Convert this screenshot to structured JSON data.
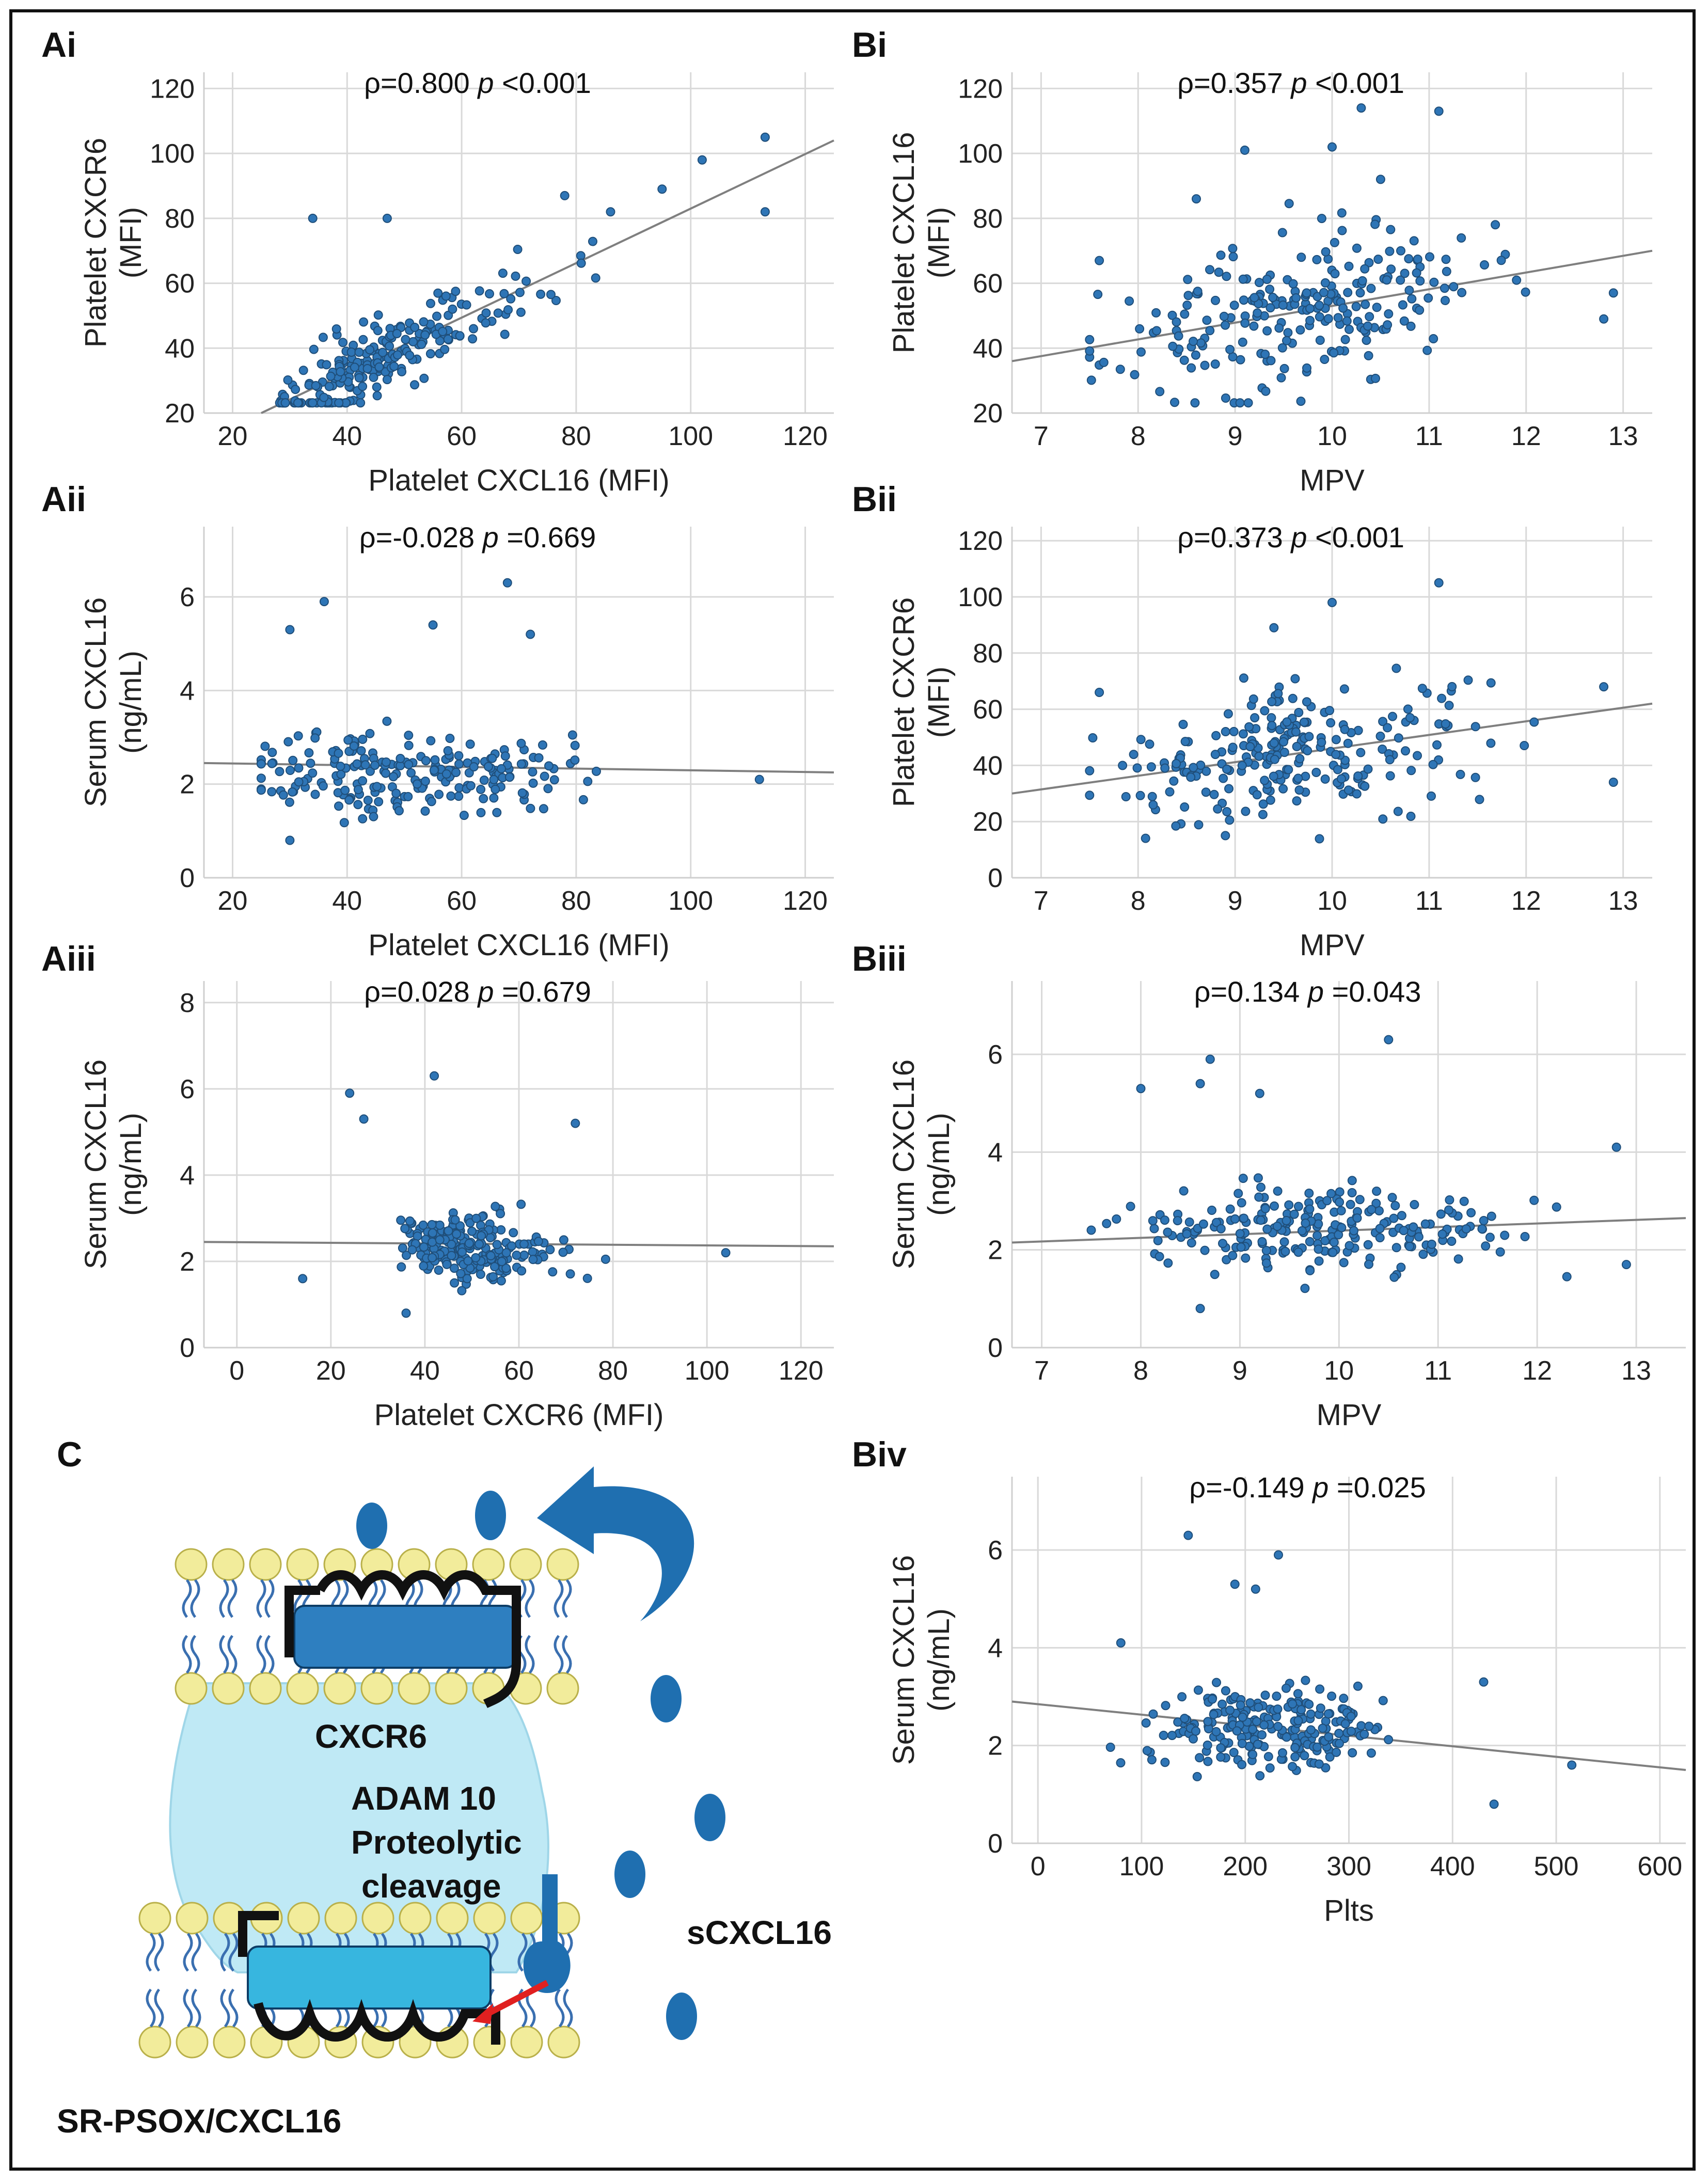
{
  "figure": {
    "panel_c": {
      "label": "C",
      "labels": {
        "receptor": "CXCR6",
        "enzyme_line1": "ADAM  10",
        "enzyme_line2": "Proteolytic",
        "enzyme_line3": "cleavage",
        "soluble": "sCXCL16",
        "membrane": "SR-PSOX/CXCL16"
      },
      "colors": {
        "cell": "#bfe9f5",
        "helix": "#2e9fd0",
        "molecule": "#1f6fb0",
        "lipid_head": "#f2ec9b",
        "cleavage_arrow": "#e02020"
      }
    }
  },
  "chart_data": [
    {
      "id": "Ai",
      "label": "Ai",
      "type": "scatter",
      "xlabel": "Platelet CXCL16 (MFI)",
      "ylabel_lines": [
        "Platelet CXCR6",
        "(MFI)"
      ],
      "xlim": [
        15,
        125
      ],
      "ylim": [
        20,
        125
      ],
      "xticks": [
        20,
        40,
        60,
        80,
        100,
        120
      ],
      "yticks": [
        20,
        40,
        60,
        80,
        100,
        120
      ],
      "rho": "ρ=0.800",
      "p_sym": "p",
      "p_val": "<0.001",
      "fit": {
        "x0": 25,
        "y0": 20,
        "x1": 125,
        "y1": 104
      },
      "n_points": 230,
      "seed": 11,
      "extra_points": [
        [
          34,
          80
        ],
        [
          47,
          80
        ],
        [
          113,
          105
        ],
        [
          113,
          82
        ],
        [
          102,
          98
        ],
        [
          95,
          89
        ],
        [
          86,
          82
        ],
        [
          78,
          87
        ]
      ]
    },
    {
      "id": "Bi",
      "label": "Bi",
      "type": "scatter",
      "xlabel": "MPV",
      "ylabel_lines": [
        "Platelet CXCL16",
        "(MFI)"
      ],
      "xlim": [
        6.7,
        13.3
      ],
      "ylim": [
        20,
        125
      ],
      "xticks": [
        7,
        8,
        9,
        10,
        11,
        12,
        13
      ],
      "yticks": [
        20,
        40,
        60,
        80,
        100,
        120
      ],
      "rho": "ρ=0.357",
      "p_sym": "p",
      "p_val": "<0.001",
      "fit": {
        "x0": 6.7,
        "y0": 36,
        "x1": 13.3,
        "y1": 70
      },
      "n_points": 240,
      "seed": 23,
      "extra_points": [
        [
          10.3,
          114
        ],
        [
          11.1,
          113
        ],
        [
          9.1,
          101
        ],
        [
          10,
          102
        ],
        [
          10.5,
          92
        ],
        [
          8.6,
          86
        ],
        [
          7.6,
          67
        ],
        [
          12.8,
          49
        ],
        [
          12.9,
          57
        ]
      ]
    },
    {
      "id": "Aii",
      "label": "Aii",
      "type": "scatter",
      "xlabel": "Platelet CXCL16 (MFI)",
      "ylabel_lines": [
        "Serum CXCL16",
        "(ng/mL)"
      ],
      "xlim": [
        15,
        125
      ],
      "ylim": [
        0,
        7.5
      ],
      "xticks": [
        20,
        40,
        60,
        80,
        100,
        120
      ],
      "yticks": [
        0,
        2,
        4,
        6
      ],
      "rho": "ρ=-0.028",
      "p_sym": "p",
      "p_val": "=0.669",
      "fit": {
        "x0": 15,
        "y0": 2.45,
        "x1": 125,
        "y1": 2.25
      },
      "n_points": 220,
      "seed": 37,
      "extra_points": [
        [
          36,
          5.9
        ],
        [
          68,
          6.3
        ],
        [
          55,
          5.4
        ],
        [
          30,
          5.3
        ],
        [
          72,
          5.2
        ],
        [
          112,
          2.1
        ],
        [
          30,
          0.8
        ]
      ]
    },
    {
      "id": "Bii",
      "label": "Bii",
      "type": "scatter",
      "xlabel": "MPV",
      "ylabel_lines": [
        "Platelet CXCR6",
        "(MFI)"
      ],
      "xlim": [
        6.7,
        13.3
      ],
      "ylim": [
        0,
        125
      ],
      "xticks": [
        7,
        8,
        9,
        10,
        11,
        12,
        13
      ],
      "yticks": [
        0,
        20,
        40,
        60,
        80,
        100,
        120
      ],
      "rho": "ρ=0.373",
      "p_sym": "p",
      "p_val": "<0.001",
      "fit": {
        "x0": 6.7,
        "y0": 30,
        "x1": 13.3,
        "y1": 62
      },
      "n_points": 240,
      "seed": 41,
      "extra_points": [
        [
          11.1,
          105
        ],
        [
          10,
          98
        ],
        [
          9.4,
          89
        ],
        [
          7.6,
          66
        ],
        [
          12.8,
          68
        ],
        [
          12.9,
          34
        ],
        [
          8.9,
          15
        ]
      ]
    },
    {
      "id": "Aiii",
      "label": "Aiii",
      "type": "scatter",
      "xlabel": "Platelet CXCR6 (MFI)",
      "ylabel_lines": [
        "Serum CXCL16",
        "(ng/mL)"
      ],
      "xlim": [
        -7,
        127
      ],
      "ylim": [
        0,
        8.5
      ],
      "xticks": [
        0,
        20,
        40,
        60,
        80,
        100,
        120
      ],
      "yticks": [
        0,
        2,
        4,
        6,
        8
      ],
      "rho": "ρ=0.028",
      "p_sym": "p",
      "p_val": "=0.679",
      "fit": {
        "x0": -7,
        "y0": 2.45,
        "x1": 127,
        "y1": 2.35
      },
      "n_points": 220,
      "seed": 53,
      "extra_points": [
        [
          24,
          5.9
        ],
        [
          42,
          6.3
        ],
        [
          27,
          5.3
        ],
        [
          72,
          5.2
        ],
        [
          104,
          2.2
        ],
        [
          14,
          1.6
        ],
        [
          36,
          0.8
        ]
      ]
    },
    {
      "id": "Biii",
      "label": "Biii",
      "type": "scatter",
      "xlabel": "MPV",
      "ylabel_lines": [
        "Serum CXCL16",
        "(ng/mL)"
      ],
      "xlim": [
        6.7,
        13.5
      ],
      "ylim": [
        0,
        7.5
      ],
      "xticks": [
        7,
        8,
        9,
        10,
        11,
        12,
        13
      ],
      "yticks": [
        0,
        2,
        4,
        6
      ],
      "rho": "ρ=0.134",
      "p_sym": "p",
      "p_val": "=0.043",
      "fit": {
        "x0": 6.7,
        "y0": 2.15,
        "x1": 13.5,
        "y1": 2.65
      },
      "n_points": 230,
      "seed": 67,
      "extra_points": [
        [
          10.5,
          6.3
        ],
        [
          8.7,
          5.9
        ],
        [
          8.6,
          5.4
        ],
        [
          8.0,
          5.3
        ],
        [
          9.2,
          5.2
        ],
        [
          12.8,
          4.1
        ],
        [
          12.9,
          1.7
        ],
        [
          8.6,
          0.8
        ]
      ]
    },
    {
      "id": "Biv",
      "label": "Biv",
      "type": "scatter",
      "xlabel": "Plts",
      "ylabel_lines": [
        "Serum CXCL16",
        "(ng/mL)"
      ],
      "xlim": [
        -25,
        625
      ],
      "ylim": [
        0,
        7.5
      ],
      "xticks": [
        0,
        100,
        200,
        300,
        400,
        500,
        600
      ],
      "yticks": [
        0,
        2,
        4,
        6
      ],
      "rho": "ρ=-0.149",
      "p_sym": "p",
      "p_val": "=0.025",
      "fit": {
        "x0": -25,
        "y0": 2.9,
        "x1": 625,
        "y1": 1.5
      },
      "n_points": 230,
      "seed": 79,
      "extra_points": [
        [
          145,
          6.3
        ],
        [
          232,
          5.9
        ],
        [
          190,
          5.3
        ],
        [
          210,
          5.2
        ],
        [
          430,
          3.3
        ],
        [
          440,
          0.8
        ],
        [
          515,
          1.6
        ],
        [
          80,
          4.1
        ]
      ]
    }
  ]
}
